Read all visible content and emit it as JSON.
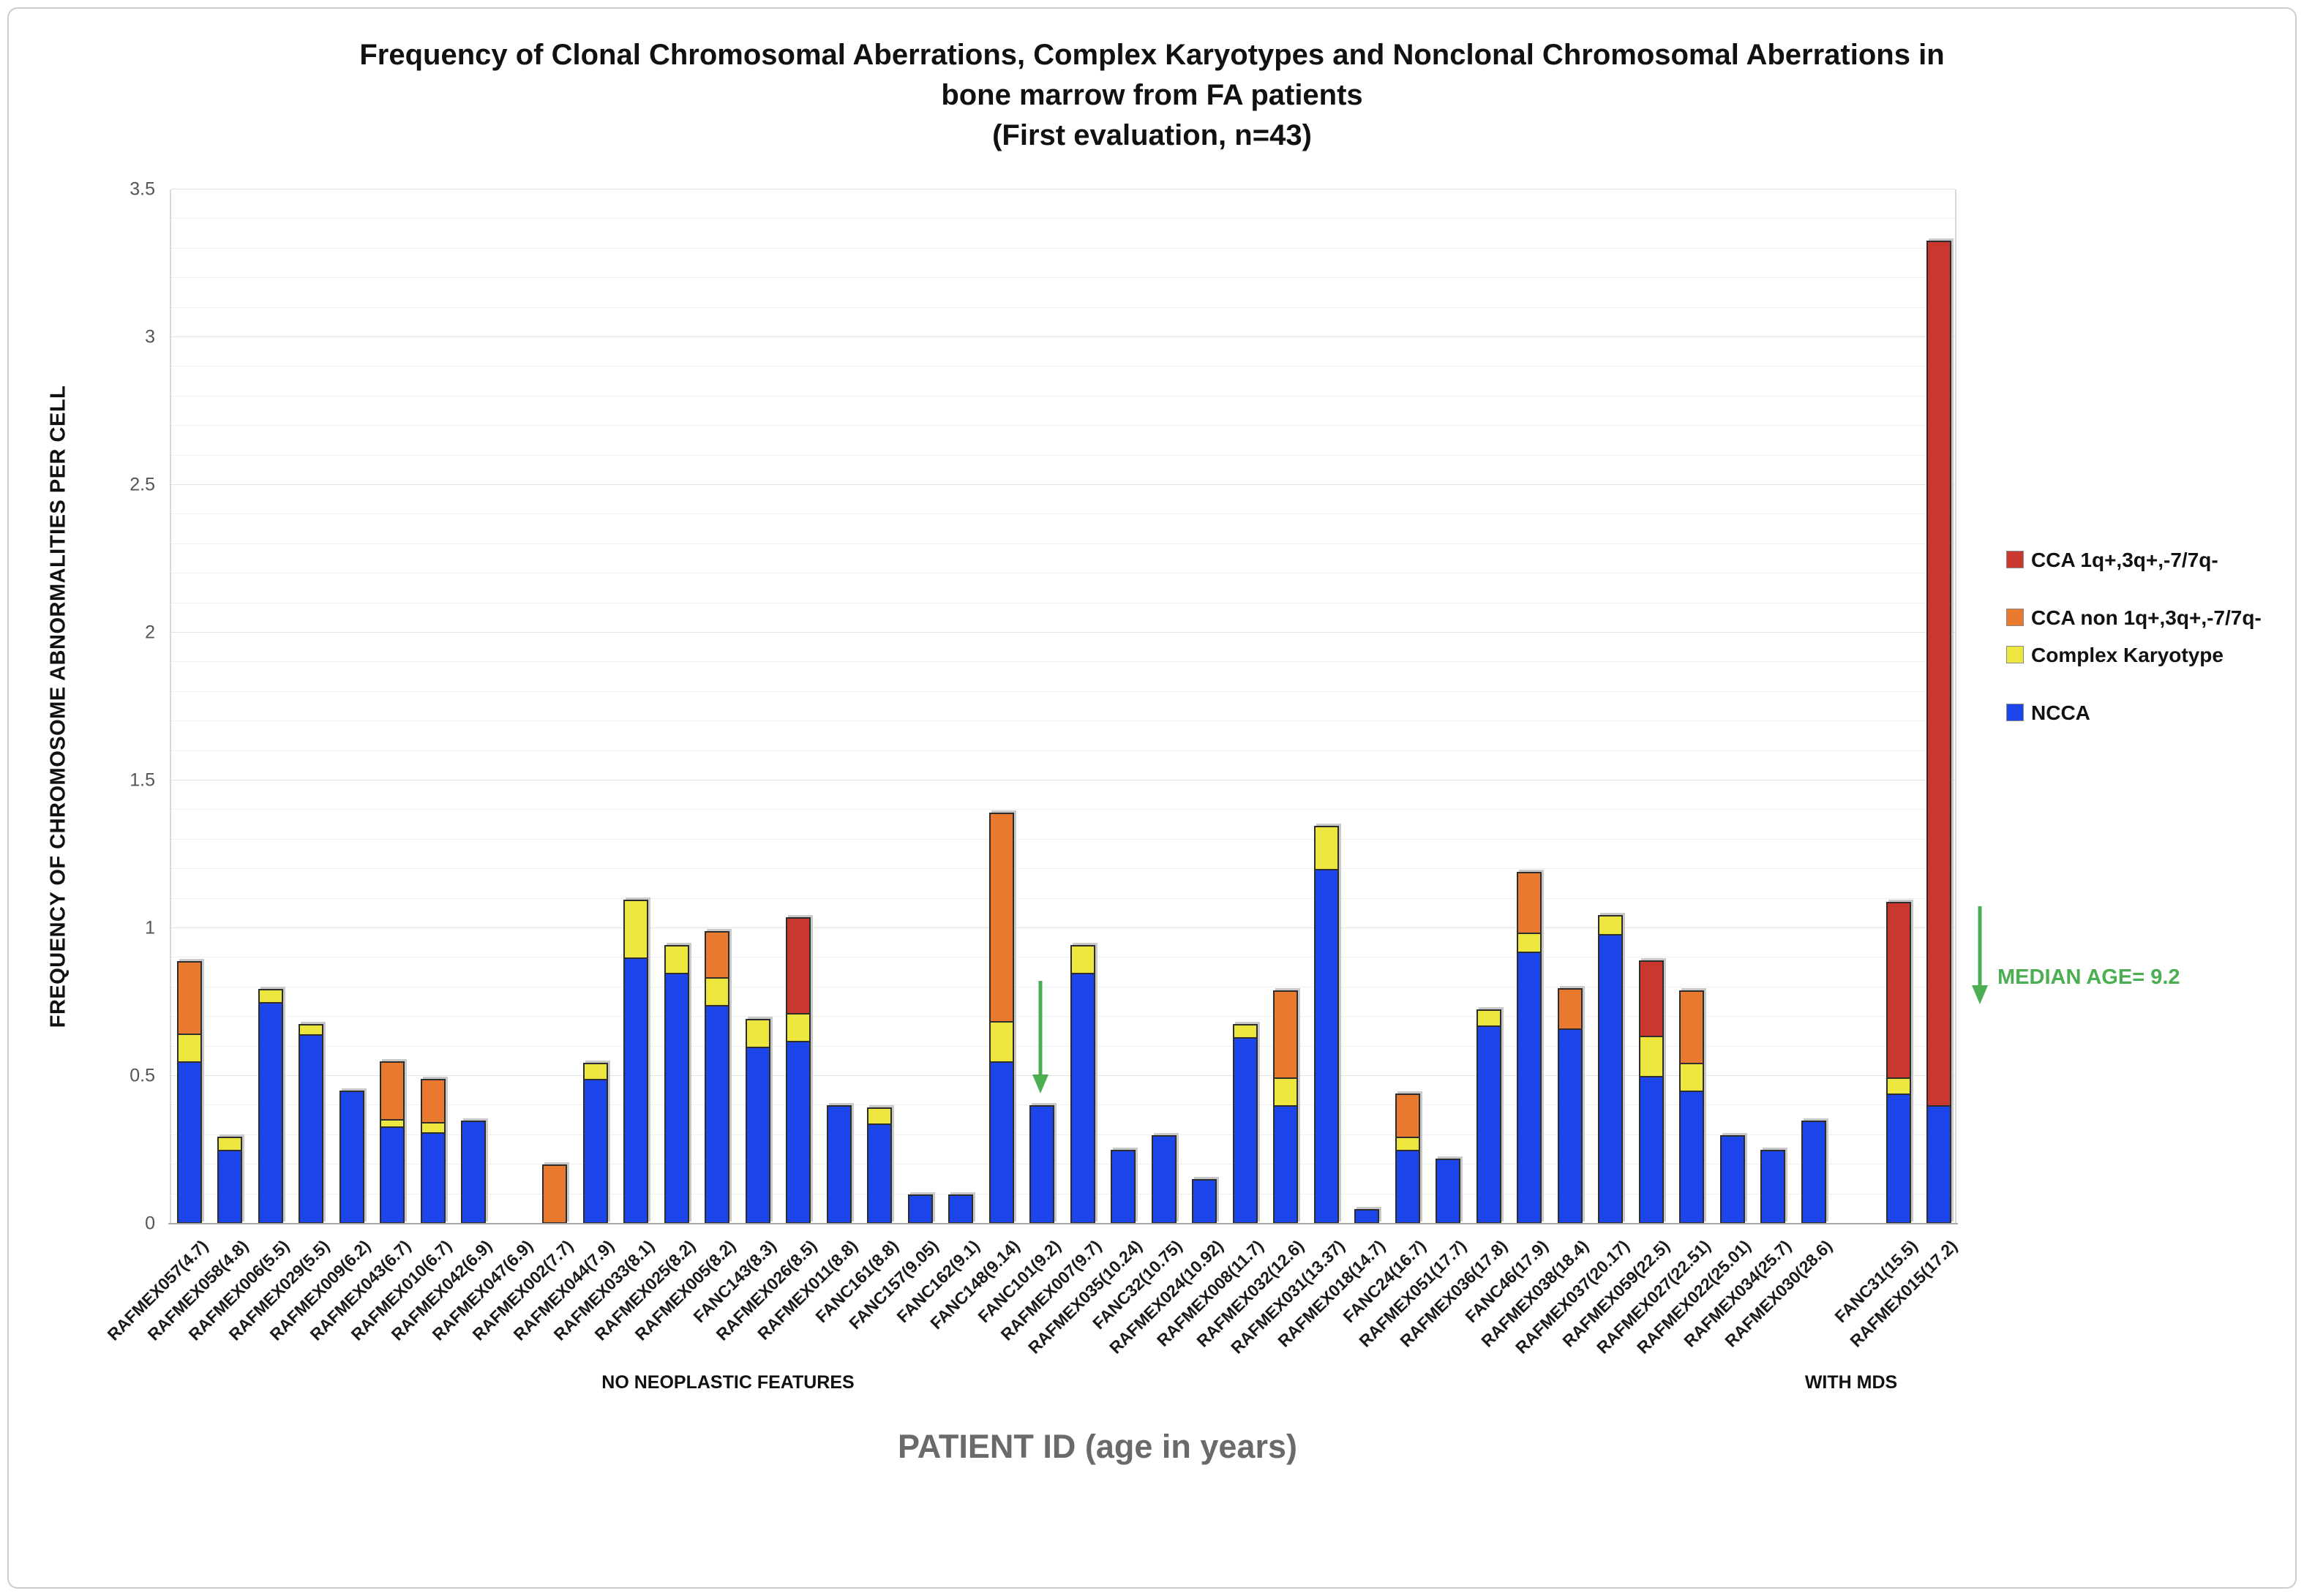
{
  "title": {
    "line1": "Frequency of Clonal Chromosomal Aberrations, Complex Karyotypes and Nonclonal Chromosomal Aberrations in",
    "line2": "bone marrow from FA patients",
    "line3": "(First evaluation, n=43)"
  },
  "y_axis": {
    "label": "FREQUENCY OF CHROMOSOME ABNORMALITIES PER CELL",
    "ticks": [
      "0",
      "0.5",
      "1",
      "1.5",
      "2",
      "2.5",
      "3",
      "3.5"
    ]
  },
  "x_axis": {
    "title": "PATIENT ID (age in years)"
  },
  "groups": {
    "group1": "NO NEOPLASTIC FEATURES",
    "group2": "WITH MDS"
  },
  "legend": {
    "items": [
      {
        "key": "cca",
        "label": "CCA 1q+,3q+,-7/7q-",
        "color": "#C9372F"
      },
      {
        "key": "cca_non",
        "label": "CCA non 1q+,3q+,-7/7q-",
        "color": "#E8792E"
      },
      {
        "key": "complex",
        "label": "Complex Karyotype",
        "color": "#EDE63E"
      },
      {
        "key": "ncca",
        "label": "NCCA",
        "color": "#1C46EC"
      }
    ]
  },
  "annotations": {
    "median_age_label": "MEDIAN AGE= 9.2",
    "arrow_color": "#4CAE52"
  },
  "colors": {
    "gridline_minor": "#efefef",
    "gridline_major": "#e2e2e2",
    "axis": "#a9a9a9",
    "bar_border": "#2d2d2d"
  },
  "chart_data": {
    "type": "bar",
    "stacked": true,
    "title": "Frequency of Clonal Chromosomal Aberrations, Complex Karyotypes and Nonclonal Chromosomal Aberrations in bone marrow from FA patients (First evaluation, n=43)",
    "xlabel": "PATIENT ID (age in years)",
    "ylabel": "FREQUENCY OF CHROMOSOME ABNORMALITIES PER CELL",
    "ylim": [
      0,
      3.5
    ],
    "ytick_step": 0.5,
    "grid_minor_step": 0.1,
    "series_order": [
      "ncca",
      "complex",
      "cca_non",
      "cca"
    ],
    "series_colors": {
      "ncca": "#1C46EC",
      "complex": "#EDE63E",
      "cca_non": "#E8792E",
      "cca": "#C9372F"
    },
    "bars": [
      {
        "label": "RAFMEX057(4.7)",
        "group": 1,
        "ncca": 0.55,
        "complex": 0.1,
        "cca_non": 0.25,
        "cca": 0
      },
      {
        "label": "RAFMEX058(4.8)",
        "group": 1,
        "ncca": 0.25,
        "complex": 0.05,
        "cca_non": 0,
        "cca": 0
      },
      {
        "label": "RAFMEX006(5.5)",
        "group": 1,
        "ncca": 0.75,
        "complex": 0.05,
        "cca_non": 0,
        "cca": 0
      },
      {
        "label": "RAFMEX029(5.5)",
        "group": 1,
        "ncca": 0.64,
        "complex": 0.04,
        "cca_non": 0,
        "cca": 0
      },
      {
        "label": "RAFMEX009(6.2)",
        "group": 1,
        "ncca": 0.45,
        "complex": 0,
        "cca_non": 0,
        "cca": 0
      },
      {
        "label": "RAFMEX043(6.7)",
        "group": 1,
        "ncca": 0.33,
        "complex": 0.03,
        "cca_non": 0.2,
        "cca": 0
      },
      {
        "label": "RAFMEX010(6.7)",
        "group": 1,
        "ncca": 0.31,
        "complex": 0.04,
        "cca_non": 0.15,
        "cca": 0
      },
      {
        "label": "RAFMEX042(6.9)",
        "group": 1,
        "ncca": 0.35,
        "complex": 0,
        "cca_non": 0,
        "cca": 0
      },
      {
        "label": "RAFMEX047(6.9)",
        "group": 1,
        "ncca": 0,
        "complex": 0,
        "cca_non": 0,
        "cca": 0
      },
      {
        "label": "RAFMEX002(7.7)",
        "group": 1,
        "ncca": 0,
        "complex": 0,
        "cca_non": 0.2,
        "cca": 0
      },
      {
        "label": "RAFMEX044(7.9)",
        "group": 1,
        "ncca": 0.49,
        "complex": 0.06,
        "cca_non": 0,
        "cca": 0
      },
      {
        "label": "RAFMEX033(8.1)",
        "group": 1,
        "ncca": 0.9,
        "complex": 0.2,
        "cca_non": 0,
        "cca": 0
      },
      {
        "label": "RAFMEX025(8.2)",
        "group": 1,
        "ncca": 0.85,
        "complex": 0.1,
        "cca_non": 0,
        "cca": 0
      },
      {
        "label": "RAFMEX005(8.2)",
        "group": 1,
        "ncca": 0.74,
        "complex": 0.1,
        "cca_non": 0.16,
        "cca": 0
      },
      {
        "label": "FANC143(8.3)",
        "group": 1,
        "ncca": 0.6,
        "complex": 0.1,
        "cca_non": 0,
        "cca": 0
      },
      {
        "label": "RAFMEX026(8.5)",
        "group": 1,
        "ncca": 0.62,
        "complex": 0.1,
        "cca_non": 0,
        "cca": 0.33
      },
      {
        "label": "RAFMEX011(8.8)",
        "group": 1,
        "ncca": 0.4,
        "complex": 0,
        "cca_non": 0,
        "cca": 0
      },
      {
        "label": "FANC161(8.8)",
        "group": 1,
        "ncca": 0.34,
        "complex": 0.06,
        "cca_non": 0,
        "cca": 0
      },
      {
        "label": "FANC157(9.05)",
        "group": 1,
        "ncca": 0.1,
        "complex": 0,
        "cca_non": 0,
        "cca": 0
      },
      {
        "label": "FANC162(9.1)",
        "group": 1,
        "ncca": 0.1,
        "complex": 0,
        "cca_non": 0,
        "cca": 0
      },
      {
        "label": "FANC148(9.14)",
        "group": 1,
        "ncca": 0.55,
        "complex": 0.14,
        "cca_non": 0.71,
        "cca": 0
      },
      {
        "label": "FANC101(9.2)",
        "group": 1,
        "ncca": 0.4,
        "complex": 0,
        "cca_non": 0,
        "cca": 0,
        "arrow": true
      },
      {
        "label": "RAFMEX007(9.7)",
        "group": 1,
        "ncca": 0.85,
        "complex": 0.1,
        "cca_non": 0,
        "cca": 0
      },
      {
        "label": "RAFMEX035(10.24)",
        "group": 1,
        "ncca": 0.25,
        "complex": 0,
        "cca_non": 0,
        "cca": 0
      },
      {
        "label": "FANC32(10.75)",
        "group": 1,
        "ncca": 0.3,
        "complex": 0,
        "cca_non": 0,
        "cca": 0
      },
      {
        "label": "RAFMEX024(10.92)",
        "group": 1,
        "ncca": 0.15,
        "complex": 0,
        "cca_non": 0,
        "cca": 0
      },
      {
        "label": "RAFMEX008(11.7)",
        "group": 1,
        "ncca": 0.63,
        "complex": 0.05,
        "cca_non": 0,
        "cca": 0
      },
      {
        "label": "RAFMEX032(12.6)",
        "group": 1,
        "ncca": 0.4,
        "complex": 0.1,
        "cca_non": 0.3,
        "cca": 0
      },
      {
        "label": "RAFMEX031(13.37)",
        "group": 1,
        "ncca": 1.2,
        "complex": 0.15,
        "cca_non": 0,
        "cca": 0
      },
      {
        "label": "RAFMEX018(14.7)",
        "group": 1,
        "ncca": 0.05,
        "complex": 0,
        "cca_non": 0,
        "cca": 0
      },
      {
        "label": "FANC24(16.7)",
        "group": 1,
        "ncca": 0.25,
        "complex": 0.05,
        "cca_non": 0.15,
        "cca": 0
      },
      {
        "label": "RAFMEX051(17.7)",
        "group": 1,
        "ncca": 0.22,
        "complex": 0,
        "cca_non": 0,
        "cca": 0
      },
      {
        "label": "RAFMEX036(17.8)",
        "group": 1,
        "ncca": 0.67,
        "complex": 0.06,
        "cca_non": 0,
        "cca": 0
      },
      {
        "label": "FANC46(17.9)",
        "group": 1,
        "ncca": 0.92,
        "complex": 0.07,
        "cca_non": 0.21,
        "cca": 0
      },
      {
        "label": "RAFMEX038(18.4)",
        "group": 1,
        "ncca": 0.66,
        "complex": 0,
        "cca_non": 0.14,
        "cca": 0
      },
      {
        "label": "RAFMEX037(20.17)",
        "group": 1,
        "ncca": 0.98,
        "complex": 0.07,
        "cca_non": 0,
        "cca": 0
      },
      {
        "label": "RAFMEX059(22.5)",
        "group": 1,
        "ncca": 0.5,
        "complex": 0.14,
        "cca_non": 0,
        "cca": 0.26
      },
      {
        "label": "RAFMEX027(22.51)",
        "group": 1,
        "ncca": 0.45,
        "complex": 0.1,
        "cca_non": 0.25,
        "cca": 0
      },
      {
        "label": "RAFMEX022(25.01)",
        "group": 1,
        "ncca": 0.3,
        "complex": 0,
        "cca_non": 0,
        "cca": 0
      },
      {
        "label": "RAFMEX034(25.7)",
        "group": 1,
        "ncca": 0.25,
        "complex": 0,
        "cca_non": 0,
        "cca": 0
      },
      {
        "label": "RAFMEX030(28.6)",
        "group": 1,
        "ncca": 0.35,
        "complex": 0,
        "cca_non": 0,
        "cca": 0
      },
      {
        "label": "FANC31(15.5)",
        "group": 2,
        "ncca": 0.44,
        "complex": 0.06,
        "cca_non": 0,
        "cca": 0.6
      },
      {
        "label": "RAFMEX015(17.2)",
        "group": 2,
        "ncca": 0.4,
        "complex": 0,
        "cca_non": 0,
        "cca": 2.93
      }
    ]
  }
}
